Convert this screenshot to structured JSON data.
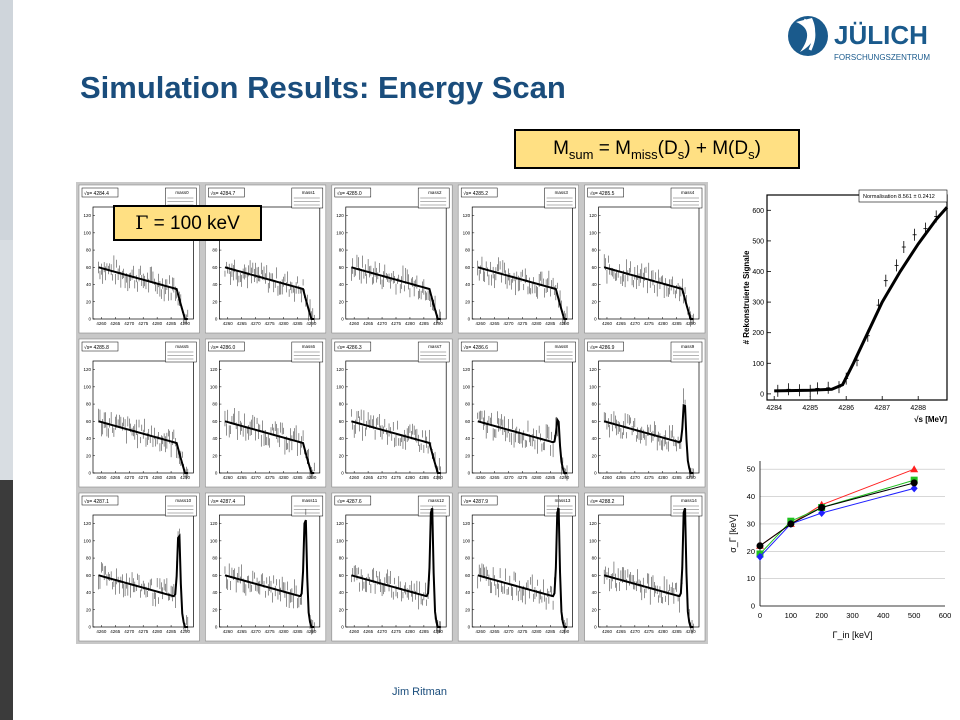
{
  "slide": {
    "title": "Simulation Results: Energy Scan",
    "footer": "Jim Ritman",
    "formula": {
      "m1": "M",
      "s1": "sum",
      "eq": " = M",
      "s2": "miss",
      "p1": "(D",
      "s3": "s",
      "p2": ") + M(D",
      "s4": "s",
      "p3": ")"
    },
    "gamma_label": " = 100 keV",
    "gamma_symbol": "Γ"
  },
  "logo": {
    "name": "JÜLICH",
    "sub": "FORSCHUNGSZENTRUM",
    "color": "#1a5a8c"
  },
  "colors": {
    "title": "#1a4d7c",
    "box_fill": "#ffe083",
    "sidebar_light": "#cfd5db",
    "sidebar_dark": "#3b3b3b"
  },
  "chart_data": [
    {
      "type": "scatter",
      "panel": "histogram-grid",
      "rows": 3,
      "cols": 5,
      "histograms": [
        {
          "sqrt_s": "√s= 4284.4",
          "name": "mass0",
          "peak": 0
        },
        {
          "sqrt_s": "√s= 4284.7",
          "name": "mass1",
          "peak": 0
        },
        {
          "sqrt_s": "√s= 4285.0",
          "name": "mass2",
          "peak": 0
        },
        {
          "sqrt_s": "√s= 4285.2",
          "name": "mass3",
          "peak": 0
        },
        {
          "sqrt_s": "√s= 4285.5",
          "name": "mass4",
          "peak": 0
        },
        {
          "sqrt_s": "√s= 4285.8",
          "name": "mass5",
          "peak": 0
        },
        {
          "sqrt_s": "√s= 4286.0",
          "name": "mass6",
          "peak": 0
        },
        {
          "sqrt_s": "√s= 4286.3",
          "name": "mass7",
          "peak": 0
        },
        {
          "sqrt_s": "√s= 4286.6",
          "name": "mass8",
          "peak": 40
        },
        {
          "sqrt_s": "√s= 4286.9",
          "name": "mass9",
          "peak": 60
        },
        {
          "sqrt_s": "√s= 4287.1",
          "name": "mass10",
          "peak": 90
        },
        {
          "sqrt_s": "√s= 4287.4",
          "name": "mass11",
          "peak": 110
        },
        {
          "sqrt_s": "√s= 4287.6",
          "name": "mass12",
          "peak": 125
        },
        {
          "sqrt_s": "√s= 4287.9",
          "name": "mass13",
          "peak": 125
        },
        {
          "sqrt_s": "√s= 4288.2",
          "name": "mass14",
          "peak": 125
        }
      ],
      "x_ticks": [
        "4260",
        "4265",
        "4270",
        "4275",
        "4280",
        "4285",
        "4290"
      ],
      "y_ticks": [
        "0",
        "20",
        "40",
        "60",
        "80",
        "100",
        "120"
      ],
      "xlim": [
        4257,
        4293
      ],
      "ylim": [
        0,
        130
      ]
    },
    {
      "type": "scatter",
      "panel": "excitation-curve",
      "ylabel": "# Rekonstruierte Signale",
      "xlabel": "√s [MeV]",
      "legend": "Normalisation 8.561 ± 0.2412",
      "x": [
        4284.1,
        4284.4,
        4284.7,
        4285.0,
        4285.2,
        4285.5,
        4285.8,
        4286.0,
        4286.3,
        4286.6,
        4286.9,
        4287.1,
        4287.4,
        4287.6,
        4287.9,
        4288.2,
        4288.5
      ],
      "y": [
        10,
        15,
        12,
        10,
        18,
        20,
        22,
        50,
        110,
        190,
        290,
        370,
        420,
        480,
        520,
        540,
        580
      ],
      "fit_x": [
        4284.0,
        4285.0,
        4285.6,
        4285.9,
        4286.2,
        4286.6,
        4287.0,
        4287.5,
        4288.0,
        4288.5,
        4288.8
      ],
      "fit_y": [
        10,
        12,
        15,
        30,
        100,
        200,
        300,
        400,
        490,
        570,
        610
      ],
      "x_ticks": [
        "4284",
        "4285",
        "4286",
        "4287",
        "4288"
      ],
      "y_ticks": [
        "0",
        "100",
        "200",
        "300",
        "400",
        "500",
        "600"
      ],
      "xlim": [
        4283.8,
        4288.8
      ],
      "ylim": [
        -20,
        650
      ]
    },
    {
      "type": "line",
      "panel": "sigma-gamma",
      "xlabel": "Γ_in [keV]",
      "ylabel": "σ_Γ [keV]",
      "x_ticks": [
        "0",
        "100",
        "200",
        "300",
        "400",
        "500",
        "600"
      ],
      "y_ticks": [
        "0",
        "5",
        "10",
        "15",
        "20",
        "25",
        "30",
        "35",
        "40",
        "45",
        "50"
      ],
      "xlim": [
        0,
        600
      ],
      "ylim": [
        0,
        53
      ],
      "series": [
        {
          "color": "#ff2020",
          "marker": "triangle",
          "x": [
            0,
            100,
            200,
            500
          ],
          "y": [
            22,
            30,
            37,
            50
          ]
        },
        {
          "color": "#20c020",
          "marker": "square",
          "x": [
            0,
            100,
            200,
            500
          ],
          "y": [
            19,
            31,
            36,
            46
          ]
        },
        {
          "color": "#2020ff",
          "marker": "diamond",
          "x": [
            0,
            100,
            200,
            500
          ],
          "y": [
            18,
            30,
            34,
            43
          ]
        },
        {
          "color": "#000000",
          "marker": "circle",
          "x": [
            0,
            100,
            200,
            500
          ],
          "y": [
            22,
            30,
            36,
            45
          ]
        }
      ]
    }
  ]
}
